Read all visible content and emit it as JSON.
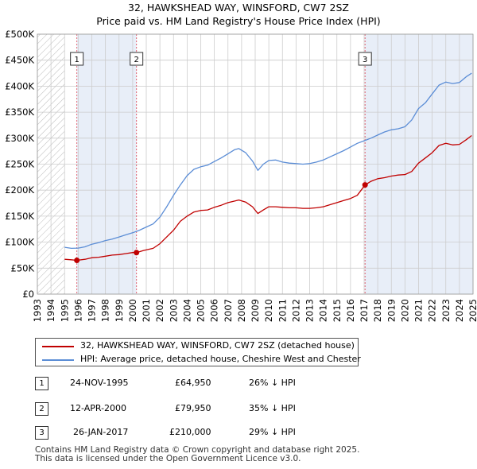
{
  "title_line1": "32, HAWKSHEAD WAY, WINSFORD, CW7 2SZ",
  "title_line2": "Price paid vs. HM Land Registry's House Price Index (HPI)",
  "colors": {
    "price": "#c00000",
    "hpi": "#5b8dd6",
    "shade": "#e8eef8",
    "vline": "#e06070",
    "grid": "#cccccc"
  },
  "chart_data": {
    "type": "line",
    "x_range": [
      1993,
      2025
    ],
    "ylim": [
      0,
      500000
    ],
    "yticks": [
      {
        "v": 0,
        "label": "£0"
      },
      {
        "v": 50000,
        "label": "£50K"
      },
      {
        "v": 100000,
        "label": "£100K"
      },
      {
        "v": 150000,
        "label": "£150K"
      },
      {
        "v": 200000,
        "label": "£200K"
      },
      {
        "v": 250000,
        "label": "£250K"
      },
      {
        "v": 300000,
        "label": "£300K"
      },
      {
        "v": 350000,
        "label": "£350K"
      },
      {
        "v": 400000,
        "label": "£400K"
      },
      {
        "v": 450000,
        "label": "£450K"
      },
      {
        "v": 500000,
        "label": "£500K"
      }
    ],
    "xticks": [
      "1993",
      "1994",
      "1995",
      "1996",
      "1997",
      "1998",
      "1999",
      "2000",
      "2001",
      "2002",
      "2003",
      "2004",
      "2005",
      "2006",
      "2007",
      "2008",
      "2009",
      "2010",
      "2011",
      "2012",
      "2013",
      "2014",
      "2015",
      "2016",
      "2017",
      "2018",
      "2019",
      "2020",
      "2021",
      "2022",
      "2023",
      "2024",
      "2025"
    ],
    "data_start": 1995.0,
    "series": [
      {
        "name": "32, HAWKSHEAD WAY, WINSFORD, CW7 2SZ (detached house)",
        "key": "price",
        "points": [
          [
            1995.0,
            67000
          ],
          [
            1995.5,
            66000
          ],
          [
            1995.9,
            64950
          ],
          [
            1996.5,
            67000
          ],
          [
            1997.0,
            70000
          ],
          [
            1997.5,
            71000
          ],
          [
            1998.0,
            73000
          ],
          [
            1998.5,
            75000
          ],
          [
            1999.0,
            76000
          ],
          [
            1999.5,
            78000
          ],
          [
            2000.0,
            80000
          ],
          [
            2000.28,
            79950
          ],
          [
            2000.8,
            84000
          ],
          [
            2001.5,
            88000
          ],
          [
            2002.0,
            97000
          ],
          [
            2002.5,
            110000
          ],
          [
            2003.0,
            123000
          ],
          [
            2003.5,
            140000
          ],
          [
            2004.0,
            150000
          ],
          [
            2004.5,
            158000
          ],
          [
            2005.0,
            161000
          ],
          [
            2005.5,
            162000
          ],
          [
            2006.0,
            167000
          ],
          [
            2006.5,
            171000
          ],
          [
            2007.0,
            176000
          ],
          [
            2007.5,
            179000
          ],
          [
            2007.8,
            181000
          ],
          [
            2008.3,
            177000
          ],
          [
            2008.8,
            168000
          ],
          [
            2009.2,
            155000
          ],
          [
            2009.6,
            162000
          ],
          [
            2010.0,
            168000
          ],
          [
            2010.5,
            168000
          ],
          [
            2011.0,
            167000
          ],
          [
            2011.5,
            166000
          ],
          [
            2012.0,
            166000
          ],
          [
            2012.5,
            165000
          ],
          [
            2013.0,
            165000
          ],
          [
            2013.5,
            166000
          ],
          [
            2014.0,
            168000
          ],
          [
            2014.5,
            172000
          ],
          [
            2015.0,
            176000
          ],
          [
            2015.5,
            180000
          ],
          [
            2016.0,
            184000
          ],
          [
            2016.5,
            190000
          ],
          [
            2017.07,
            210000
          ],
          [
            2017.5,
            217000
          ],
          [
            2018.0,
            222000
          ],
          [
            2018.5,
            224000
          ],
          [
            2019.0,
            227000
          ],
          [
            2019.5,
            229000
          ],
          [
            2020.0,
            230000
          ],
          [
            2020.5,
            236000
          ],
          [
            2021.0,
            252000
          ],
          [
            2021.5,
            262000
          ],
          [
            2022.0,
            272000
          ],
          [
            2022.5,
            286000
          ],
          [
            2023.0,
            290000
          ],
          [
            2023.5,
            287000
          ],
          [
            2024.0,
            288000
          ],
          [
            2024.5,
            297000
          ],
          [
            2024.9,
            305000
          ]
        ]
      },
      {
        "name": "HPI: Average price, detached house, Cheshire West and Chester",
        "key": "hpi",
        "points": [
          [
            1995.0,
            90000
          ],
          [
            1995.5,
            88000
          ],
          [
            1996.0,
            88500
          ],
          [
            1996.5,
            91000
          ],
          [
            1997.0,
            96000
          ],
          [
            1997.5,
            99000
          ],
          [
            1998.0,
            103000
          ],
          [
            1998.5,
            106000
          ],
          [
            1999.0,
            110000
          ],
          [
            1999.5,
            114000
          ],
          [
            2000.0,
            118000
          ],
          [
            2000.5,
            123000
          ],
          [
            2001.0,
            129000
          ],
          [
            2001.5,
            135000
          ],
          [
            2002.0,
            148000
          ],
          [
            2002.5,
            168000
          ],
          [
            2003.0,
            190000
          ],
          [
            2003.5,
            210000
          ],
          [
            2004.0,
            228000
          ],
          [
            2004.5,
            240000
          ],
          [
            2005.0,
            245000
          ],
          [
            2005.5,
            248000
          ],
          [
            2006.0,
            255000
          ],
          [
            2006.5,
            262000
          ],
          [
            2007.0,
            270000
          ],
          [
            2007.5,
            278000
          ],
          [
            2007.8,
            280000
          ],
          [
            2008.3,
            272000
          ],
          [
            2008.8,
            256000
          ],
          [
            2009.2,
            238000
          ],
          [
            2009.6,
            250000
          ],
          [
            2010.0,
            257000
          ],
          [
            2010.5,
            258000
          ],
          [
            2011.0,
            254000
          ],
          [
            2011.5,
            252000
          ],
          [
            2012.0,
            251000
          ],
          [
            2012.5,
            250000
          ],
          [
            2013.0,
            251000
          ],
          [
            2013.5,
            254000
          ],
          [
            2014.0,
            258000
          ],
          [
            2014.5,
            264000
          ],
          [
            2015.0,
            270000
          ],
          [
            2015.5,
            276000
          ],
          [
            2016.0,
            283000
          ],
          [
            2016.5,
            290000
          ],
          [
            2017.0,
            295000
          ],
          [
            2017.5,
            300000
          ],
          [
            2018.0,
            306000
          ],
          [
            2018.5,
            312000
          ],
          [
            2019.0,
            316000
          ],
          [
            2019.5,
            318000
          ],
          [
            2020.0,
            322000
          ],
          [
            2020.5,
            335000
          ],
          [
            2021.0,
            357000
          ],
          [
            2021.5,
            368000
          ],
          [
            2022.0,
            385000
          ],
          [
            2022.5,
            402000
          ],
          [
            2023.0,
            408000
          ],
          [
            2023.5,
            405000
          ],
          [
            2024.0,
            407000
          ],
          [
            2024.5,
            418000
          ],
          [
            2024.9,
            425000
          ]
        ]
      }
    ],
    "sales": [
      {
        "label": "1",
        "x": 1995.9,
        "price": 64950
      },
      {
        "label": "2",
        "x": 2000.28,
        "price": 79950
      },
      {
        "label": "3",
        "x": 2017.07,
        "price": 210000
      }
    ]
  },
  "legend": {
    "price_label": "32, HAWKSHEAD WAY, WINSFORD, CW7 2SZ (detached house)",
    "hpi_label": "HPI: Average price, detached house, Cheshire West and Chester"
  },
  "transactions": [
    {
      "num": "1",
      "date": "24-NOV-1995",
      "price": "£64,950",
      "hpi": "26% ↓ HPI"
    },
    {
      "num": "2",
      "date": "12-APR-2000",
      "price": "£79,950",
      "hpi": "35% ↓ HPI"
    },
    {
      "num": "3",
      "date": "26-JAN-2017",
      "price": "£210,000",
      "hpi": "29% ↓ HPI"
    }
  ],
  "footer_line1": "Contains HM Land Registry data © Crown copyright and database right 2025.",
  "footer_line2": "This data is licensed under the Open Government Licence v3.0."
}
